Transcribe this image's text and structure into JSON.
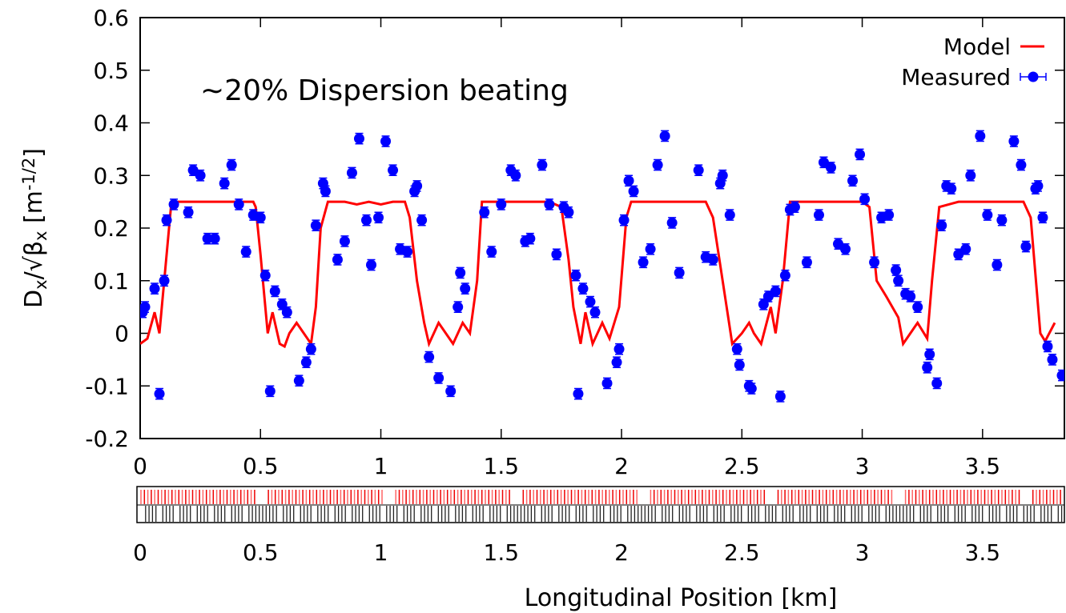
{
  "chart_data": {
    "type": "scatter",
    "annotation": "∼20% Dispersion beating",
    "ylabel_parts": [
      "D",
      "x",
      "/√β",
      "x",
      " [m",
      "-1/2",
      "]"
    ],
    "xlabel": "Longitudinal Position [km]",
    "xlim": [
      0,
      3.84
    ],
    "ylim": [
      -0.2,
      0.6
    ],
    "xticks": [
      0,
      0.5,
      1,
      1.5,
      2,
      2.5,
      3,
      3.5
    ],
    "yticks": [
      -0.2,
      -0.1,
      0,
      0.1,
      0.2,
      0.3,
      0.4,
      0.5,
      0.6
    ],
    "legend": "top-right",
    "series": [
      {
        "name": "Model",
        "color": "#ff0000",
        "style": "line",
        "x": [
          0,
          0.03,
          0.06,
          0.08,
          0.1,
          0.13,
          0.2,
          0.3,
          0.4,
          0.47,
          0.48,
          0.5,
          0.53,
          0.55,
          0.58,
          0.6,
          0.62,
          0.65,
          0.68,
          0.71,
          0.73,
          0.75,
          0.78,
          0.85,
          0.9,
          0.95,
          1.0,
          1.05,
          1.1,
          1.12,
          1.15,
          1.18,
          1.2,
          1.24,
          1.27,
          1.3,
          1.34,
          1.37,
          1.4,
          1.42,
          1.5,
          1.6,
          1.7,
          1.75,
          1.78,
          1.8,
          1.83,
          1.85,
          1.88,
          1.92,
          1.95,
          1.99,
          2.02,
          2.04,
          2.1,
          2.2,
          2.3,
          2.35,
          2.38,
          2.42,
          2.46,
          2.5,
          2.53,
          2.55,
          2.58,
          2.62,
          2.64,
          2.67,
          2.7,
          2.8,
          2.9,
          3.0,
          3.03,
          3.06,
          3.1,
          3.15,
          3.17,
          3.2,
          3.23,
          3.27,
          3.29,
          3.32,
          3.4,
          3.5,
          3.6,
          3.67,
          3.7,
          3.74,
          3.76,
          3.8
        ],
        "values": [
          -0.02,
          -0.01,
          0.04,
          0.0,
          0.1,
          0.25,
          0.25,
          0.25,
          0.25,
          0.25,
          0.24,
          0.15,
          0.0,
          0.04,
          -0.02,
          -0.025,
          0.0,
          0.02,
          0.0,
          -0.02,
          0.05,
          0.2,
          0.25,
          0.25,
          0.245,
          0.25,
          0.245,
          0.25,
          0.25,
          0.22,
          0.1,
          0.02,
          -0.02,
          0.02,
          0.0,
          -0.02,
          0.02,
          0.0,
          0.1,
          0.25,
          0.25,
          0.25,
          0.25,
          0.24,
          0.14,
          0.05,
          -0.02,
          0.04,
          -0.02,
          0.02,
          -0.01,
          0.05,
          0.22,
          0.25,
          0.25,
          0.25,
          0.25,
          0.25,
          0.22,
          0.1,
          -0.02,
          0.0,
          0.02,
          0.0,
          -0.02,
          0.05,
          0.0,
          0.1,
          0.25,
          0.25,
          0.25,
          0.25,
          0.24,
          0.1,
          0.07,
          0.03,
          -0.02,
          0.0,
          0.02,
          -0.01,
          0.1,
          0.24,
          0.25,
          0.25,
          0.25,
          0.25,
          0.22,
          0.0,
          -0.015,
          0.02
        ]
      },
      {
        "name": "Measured",
        "color": "#0000ff",
        "style": "points",
        "yerr": 0.01,
        "x": [
          0.01,
          0.02,
          0.06,
          0.08,
          0.1,
          0.11,
          0.14,
          0.2,
          0.22,
          0.25,
          0.28,
          0.31,
          0.35,
          0.38,
          0.41,
          0.44,
          0.47,
          0.5,
          0.52,
          0.54,
          0.56,
          0.59,
          0.61,
          0.66,
          0.69,
          0.71,
          0.73,
          0.76,
          0.77,
          0.82,
          0.85,
          0.88,
          0.91,
          0.94,
          0.96,
          0.99,
          1.02,
          1.05,
          1.08,
          1.11,
          1.14,
          1.15,
          1.17,
          1.2,
          1.24,
          1.29,
          1.32,
          1.33,
          1.35,
          1.43,
          1.46,
          1.5,
          1.54,
          1.56,
          1.6,
          1.62,
          1.67,
          1.7,
          1.73,
          1.76,
          1.78,
          1.81,
          1.82,
          1.84,
          1.87,
          1.89,
          1.94,
          1.98,
          1.99,
          2.01,
          2.03,
          2.05,
          2.09,
          2.12,
          2.15,
          2.18,
          2.21,
          2.24,
          2.32,
          2.35,
          2.38,
          2.41,
          2.42,
          2.45,
          2.48,
          2.49,
          2.53,
          2.54,
          2.59,
          2.61,
          2.64,
          2.66,
          2.68,
          2.7,
          2.72,
          2.77,
          2.82,
          2.84,
          2.87,
          2.9,
          2.93,
          2.96,
          2.99,
          3.01,
          3.05,
          3.08,
          3.11,
          3.14,
          3.15,
          3.18,
          3.2,
          3.23,
          3.28,
          3.27,
          3.31,
          3.33,
          3.35,
          3.37,
          3.4,
          3.43,
          3.45,
          3.49,
          3.52,
          3.56,
          3.58,
          3.63,
          3.66,
          3.68,
          3.72,
          3.73,
          3.75,
          3.77,
          3.79,
          3.83
        ],
        "values": [
          0.04,
          0.05,
          0.085,
          -0.115,
          0.1,
          0.215,
          0.245,
          0.23,
          0.31,
          0.3,
          0.18,
          0.18,
          0.285,
          0.32,
          0.245,
          0.155,
          0.225,
          0.22,
          0.11,
          -0.11,
          0.08,
          0.055,
          0.04,
          -0.09,
          -0.055,
          -0.03,
          0.205,
          0.285,
          0.27,
          0.14,
          0.175,
          0.305,
          0.37,
          0.215,
          0.13,
          0.22,
          0.365,
          0.31,
          0.16,
          0.155,
          0.27,
          0.28,
          0.215,
          -0.045,
          -0.085,
          -0.11,
          0.05,
          0.115,
          0.085,
          0.23,
          0.155,
          0.245,
          0.31,
          0.3,
          0.175,
          0.18,
          0.32,
          0.245,
          0.15,
          0.24,
          0.23,
          0.11,
          -0.115,
          0.085,
          0.06,
          0.04,
          -0.095,
          -0.055,
          -0.03,
          0.215,
          0.29,
          0.27,
          0.135,
          0.16,
          0.32,
          0.375,
          0.21,
          0.115,
          0.31,
          0.145,
          0.14,
          0.285,
          0.3,
          0.225,
          -0.03,
          -0.06,
          -0.1,
          -0.105,
          0.055,
          0.07,
          0.08,
          -0.12,
          0.11,
          0.235,
          0.24,
          0.135,
          0.225,
          0.325,
          0.315,
          0.17,
          0.16,
          0.29,
          0.34,
          0.255,
          0.135,
          0.22,
          0.225,
          0.12,
          0.1,
          0.075,
          0.07,
          0.05,
          -0.04,
          -0.065,
          -0.095,
          0.205,
          0.28,
          0.275,
          0.15,
          0.16,
          0.3,
          0.375,
          0.225,
          0.13,
          0.215,
          0.365,
          0.32,
          0.165,
          0.275,
          0.28,
          0.22,
          -0.025,
          -0.05,
          -0.08
        ]
      }
    ]
  }
}
